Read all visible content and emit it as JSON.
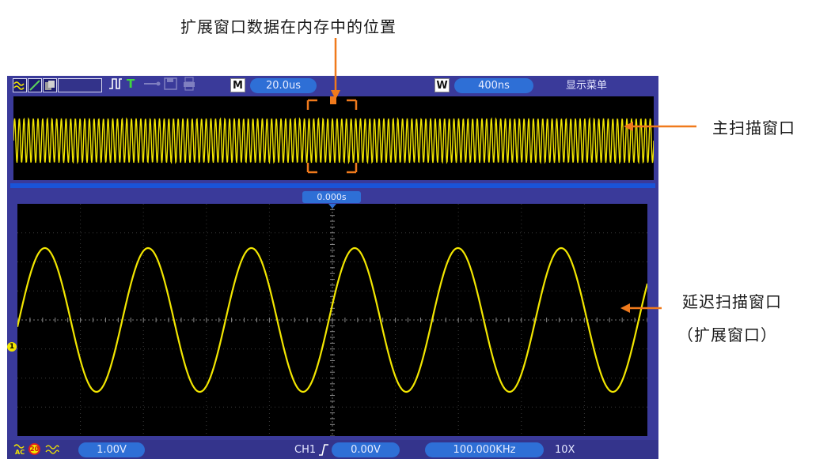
{
  "annotations": {
    "expand_window_position": "扩展窗口数据在内存中的位置",
    "main_window": "主扫描窗口",
    "delayed_window": "延迟扫描窗口",
    "delayed_window_sub": "（扩展窗口）"
  },
  "top_bar": {
    "main_badge": "M",
    "main_timebase": "20.0us",
    "window_badge": "W",
    "window_timebase": "400ns",
    "menu_label": "显示菜单",
    "trigger_icon_label": "T"
  },
  "time_tag": "0.000s",
  "channel_marker": "1",
  "bottom_bar": {
    "ch1_scale": "1.00V",
    "bandwidth_badge": "20",
    "trigger_source": "CH1",
    "trigger_level": "0.00V",
    "frequency": "100.000KHz",
    "probe": "10X"
  },
  "colors": {
    "trace": "#f2e600",
    "accent": "#f07a1c",
    "frame": "#3a3a9a",
    "pill": "#2e6fd6"
  },
  "waveform": {
    "main_cycles": 6,
    "overview_cycles": 137
  }
}
